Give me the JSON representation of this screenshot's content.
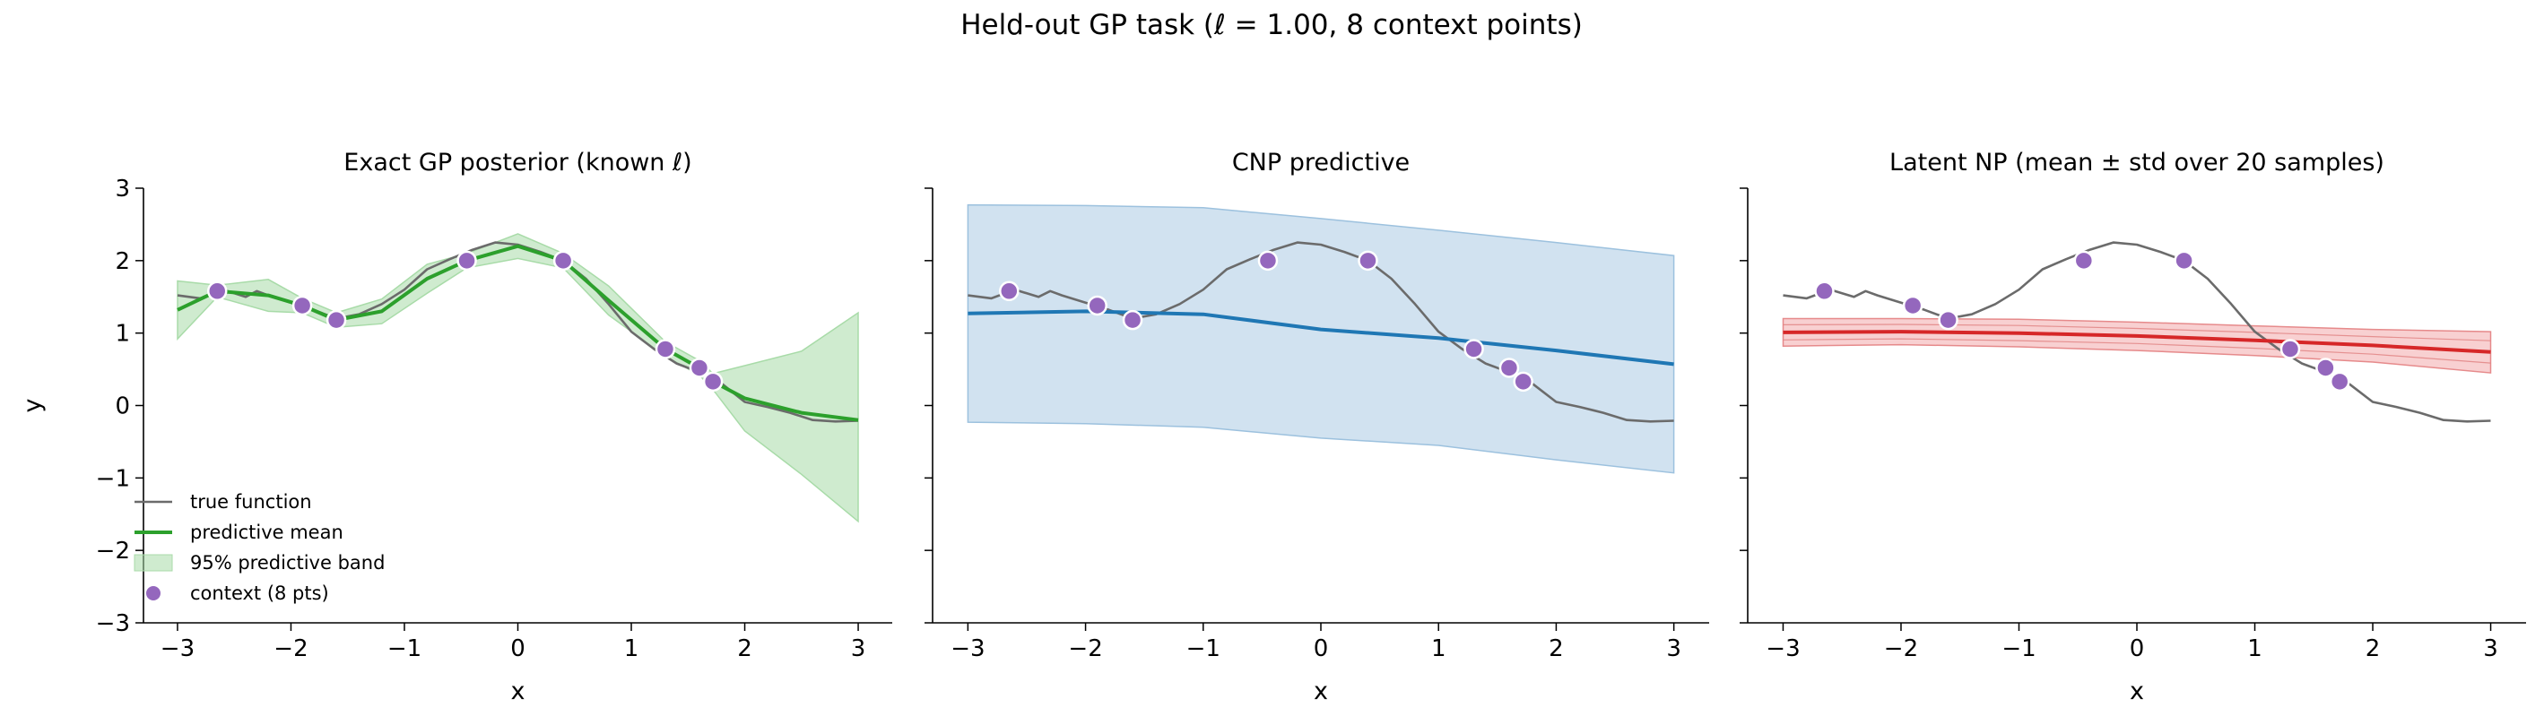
{
  "figure": {
    "suptitle": "Held-out GP task (ℓ = 1.00, 8 context points)"
  },
  "colors": {
    "true_fn": "#6b6b6b",
    "context": "#9467bd",
    "gp": "#2ca02c",
    "gp_band": "#a8dba8",
    "cnp": "#1f77b4",
    "cnp_band": "#b3cfe6",
    "np": "#d62728",
    "np_band": "#f2aaab"
  },
  "chart_data": [
    {
      "type": "line",
      "title": "Exact GP posterior (known ℓ)",
      "xlabel": "x",
      "ylabel": "y",
      "xlim": [
        -3.3,
        3.3
      ],
      "ylim": [
        -3,
        3
      ],
      "xticks": [
        -3,
        -2,
        -1,
        0,
        1,
        2,
        3
      ],
      "yticks": [
        -3,
        -2,
        -1,
        0,
        1,
        2,
        3
      ],
      "grid": false,
      "legend": {
        "position": "lower-left",
        "entries": [
          "true function",
          "predictive mean",
          "95% predictive band",
          "context (8 pts)"
        ]
      },
      "true_function": {
        "x": [
          -3,
          -2.8,
          -2.6,
          -2.4,
          -2.3,
          -2.2,
          -2,
          -1.8,
          -1.6,
          -1.4,
          -1.2,
          -1,
          -0.8,
          -0.6,
          -0.4,
          -0.2,
          0,
          0.2,
          0.4,
          0.6,
          0.8,
          1,
          1.2,
          1.4,
          1.6,
          1.8,
          2,
          2.2,
          2.4,
          2.6,
          2.8,
          3
        ],
        "y": [
          1.52,
          1.48,
          1.6,
          1.5,
          1.58,
          1.52,
          1.42,
          1.32,
          1.2,
          1.26,
          1.4,
          1.6,
          1.88,
          2.02,
          2.15,
          2.25,
          2.22,
          2.12,
          2.0,
          1.75,
          1.4,
          1.02,
          0.78,
          0.58,
          0.46,
          0.3,
          0.05,
          -0.02,
          -0.1,
          -0.2,
          -0.22,
          -0.21
        ]
      },
      "context": {
        "x": [
          -2.65,
          -1.9,
          -1.6,
          -0.45,
          0.4,
          1.3,
          1.6,
          1.72
        ],
        "y": [
          1.58,
          1.38,
          1.18,
          2.0,
          2.0,
          0.78,
          0.52,
          0.33
        ]
      },
      "series": [
        {
          "name": "predictive mean",
          "x": [
            -3,
            -2.65,
            -2.2,
            -1.9,
            -1.6,
            -1.2,
            -0.8,
            -0.45,
            0,
            0.4,
            0.8,
            1.3,
            1.6,
            1.72,
            2,
            2.5,
            3
          ],
          "y": [
            1.32,
            1.58,
            1.52,
            1.38,
            1.18,
            1.3,
            1.75,
            2.0,
            2.2,
            2.0,
            1.45,
            0.78,
            0.52,
            0.33,
            0.1,
            -0.1,
            -0.2
          ],
          "band_lower": [
            0.92,
            1.5,
            1.3,
            1.28,
            1.08,
            1.13,
            1.55,
            1.9,
            2.03,
            1.9,
            1.25,
            0.68,
            0.42,
            0.22,
            -0.35,
            -0.95,
            -1.6
          ],
          "band_upper": [
            1.72,
            1.66,
            1.74,
            1.48,
            1.28,
            1.47,
            1.95,
            2.1,
            2.37,
            2.1,
            1.65,
            0.88,
            0.62,
            0.44,
            0.55,
            0.75,
            1.28
          ]
        }
      ]
    },
    {
      "type": "line",
      "title": "CNP predictive",
      "xlabel": "x",
      "ylabel": "",
      "xlim": [
        -3.3,
        3.3
      ],
      "ylim": [
        -3,
        3
      ],
      "xticks": [
        -3,
        -2,
        -1,
        0,
        1,
        2,
        3
      ],
      "yticks": [
        -3,
        -2,
        -1,
        0,
        1,
        2,
        3
      ],
      "grid": false,
      "series": [
        {
          "name": "predictive mean",
          "x": [
            -3,
            -2,
            -1,
            0,
            1,
            2,
            3
          ],
          "y": [
            1.27,
            1.3,
            1.26,
            1.05,
            0.93,
            0.76,
            0.57
          ],
          "band_lower": [
            -0.23,
            -0.25,
            -0.3,
            -0.45,
            -0.55,
            -0.75,
            -0.93
          ],
          "band_upper": [
            2.77,
            2.76,
            2.73,
            2.58,
            2.42,
            2.25,
            2.07
          ]
        }
      ]
    },
    {
      "type": "line",
      "title": "Latent NP (mean ± std over 20 samples)",
      "xlabel": "x",
      "ylabel": "",
      "xlim": [
        -3.3,
        3.3
      ],
      "ylim": [
        -3,
        3
      ],
      "xticks": [
        -3,
        -2,
        -1,
        0,
        1,
        2,
        3
      ],
      "yticks": [
        -3,
        -2,
        -1,
        0,
        1,
        2,
        3
      ],
      "grid": false,
      "series": [
        {
          "name": "mean",
          "x": [
            -3,
            -2,
            -1,
            0,
            1,
            2,
            3
          ],
          "y": [
            1.01,
            1.02,
            1.0,
            0.96,
            0.9,
            0.83,
            0.74
          ],
          "band_lower": [
            0.82,
            0.84,
            0.81,
            0.76,
            0.69,
            0.6,
            0.45
          ],
          "band_upper": [
            1.2,
            1.2,
            1.19,
            1.15,
            1.1,
            1.05,
            1.02
          ]
        }
      ]
    }
  ]
}
